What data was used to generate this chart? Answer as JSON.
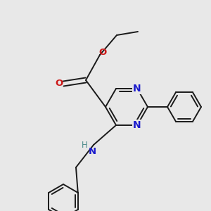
{
  "bg_color": "#e8e8e8",
  "bond_color": "#1a1a1a",
  "N_color": "#1a1acc",
  "O_color": "#cc1a1a",
  "NH_color": "#4a8a8a",
  "lw": 1.4,
  "figsize": [
    3.0,
    3.0
  ],
  "dpi": 100,
  "xlim": [
    0,
    300
  ],
  "ylim": [
    0,
    300
  ]
}
